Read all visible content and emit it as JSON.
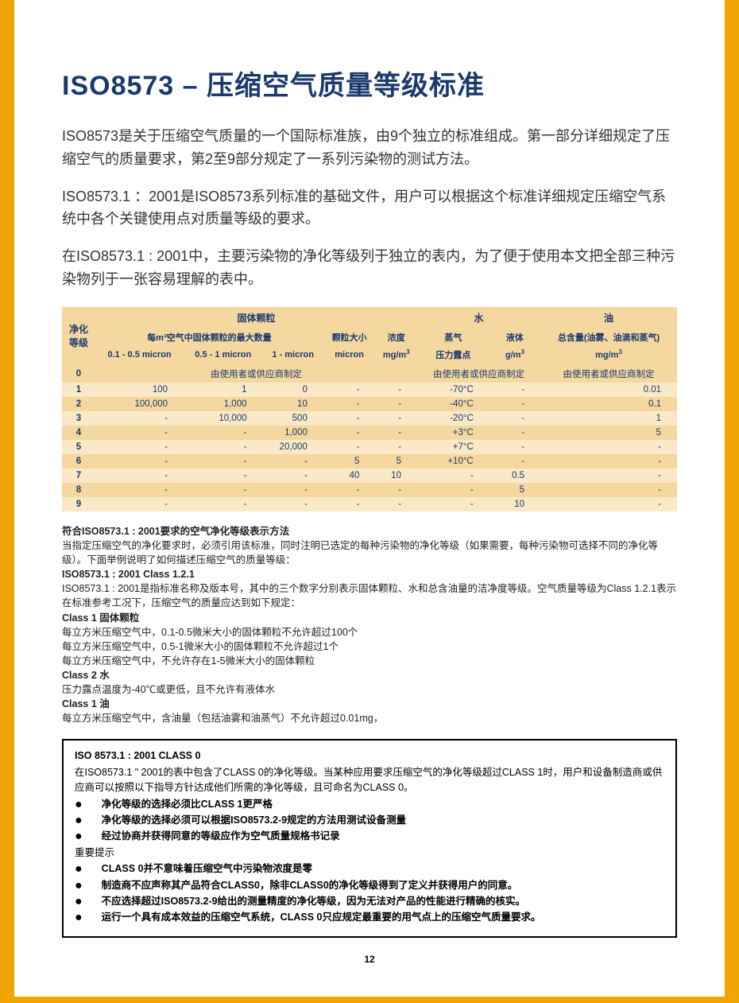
{
  "title": "ISO8573 – 压缩空气质量等级标准",
  "intro": {
    "p1": "ISO8573是关于压缩空气质量的一个国际标准族，由9个独立的标准组成。第一部分详细规定了压缩空气的质量要求，第2至9部分规定了一系列污染物的测试方法。",
    "p2": "ISO8573.1 ：2001是ISO8573系列标准的基础文件，用户可以根据这个标准详细规定压缩空气系统中各个关键使用点对质量等级的要求。",
    "p3": "在ISO8573.1 : 2001中，主要污染物的净化等级列于独立的表内，为了便于使用本文把全部三种污染物列于一张容易理解的表中。"
  },
  "table": {
    "groupHeaders": {
      "solid": "固体颗粒",
      "water": "水",
      "oil": "油"
    },
    "classLabel": "净化等级",
    "midHeaders": {
      "maxParticles": "每m³空气中固体颗粒的最大数量",
      "particleSize": "颗粒大小",
      "concentration": "浓度",
      "vapor": "蒸气",
      "liquid": "液体",
      "oilTotal": "总含量(油雾、油滴和蒸气)"
    },
    "subHeaders": {
      "c1": "0.1 - 0.5 micron",
      "c2": "0.5 - 1 micron",
      "c3": "1 - micron",
      "c4": "micron",
      "c5": "mg/m³",
      "c6": "压力露点",
      "c7": "g/m³",
      "c8": "mg/m³"
    },
    "specifiedText": "由使用者或供应商制定",
    "rows": [
      {
        "cls": "0",
        "c1": "",
        "c2": "由使用者或供应商制定",
        "c3": "",
        "c4": "",
        "c5": "",
        "c6": "由使用者或供应商制定",
        "c7": "",
        "c8": "由使用者或供应商制定",
        "span": true
      },
      {
        "cls": "1",
        "c1": "100",
        "c2": "1",
        "c3": "0",
        "c4": "-",
        "c5": "-",
        "c6": "-70°C",
        "c7": "-",
        "c8": "0.01"
      },
      {
        "cls": "2",
        "c1": "100,000",
        "c2": "1,000",
        "c3": "10",
        "c4": "-",
        "c5": "-",
        "c6": "-40°C",
        "c7": "-",
        "c8": "0.1"
      },
      {
        "cls": "3",
        "c1": "-",
        "c2": "10,000",
        "c3": "500",
        "c4": "-",
        "c5": "-",
        "c6": "-20°C",
        "c7": "-",
        "c8": "1"
      },
      {
        "cls": "4",
        "c1": "-",
        "c2": "-",
        "c3": "1,000",
        "c4": "-",
        "c5": "-",
        "c6": "+3°C",
        "c7": "-",
        "c8": "5"
      },
      {
        "cls": "5",
        "c1": "-",
        "c2": "-",
        "c3": "20,000",
        "c4": "-",
        "c5": "-",
        "c6": "+7°C",
        "c7": "-",
        "c8": "-"
      },
      {
        "cls": "6",
        "c1": "-",
        "c2": "-",
        "c3": "-",
        "c4": "5",
        "c5": "5",
        "c6": "+10°C",
        "c7": "-",
        "c8": "-"
      },
      {
        "cls": "7",
        "c1": "-",
        "c2": "-",
        "c3": "-",
        "c4": "40",
        "c5": "10",
        "c6": "-",
        "c7": "0.5",
        "c8": "-"
      },
      {
        "cls": "8",
        "c1": "-",
        "c2": "-",
        "c3": "-",
        "c4": "-",
        "c5": "-",
        "c6": "-",
        "c7": "5",
        "c8": "-"
      },
      {
        "cls": "9",
        "c1": "-",
        "c2": "-",
        "c3": "-",
        "c4": "-",
        "c5": "-",
        "c6": "-",
        "c7": "10",
        "c8": "-"
      }
    ]
  },
  "spec": {
    "h1": "符合ISO8573.1 : 2001要求的空气净化等级表示方法",
    "p1": "当指定压缩空气的净化要求时，必须引用该标准，同时注明已选定的每种污染物的净化等级（如果需要，每种污染物可选择不同的净化等级）。下面举例说明了如何描述压缩空气的质量等级：",
    "h2": "ISO8573.1 : 2001 Class 1.2.1",
    "p2": "ISO8573.1 : 2001是指标准名称及版本号，其中的三个数字分别表示固体颗粒、水和总含油量的洁净度等级。空气质量等级为Class 1.2.1表示在标准参考工况下，压缩空气的质量应达到如下规定：",
    "h3": "Class 1 固体颗粒",
    "p3a": "每立方米压缩空气中，0.1-0.5微米大小的固体颗粒不允许超过100个",
    "p3b": "每立方米压缩空气中，0.5-1微米大小的固体颗粒不允许超过1个",
    "p3c": "每立方米压缩空气中，不允许存在1-5微米大小的固体颗粒",
    "h4": "Class 2 水",
    "p4": "压力露点温度为-40℃或更低，且不允许有液体水",
    "h5": "Class 1 油",
    "p5": "每立方米压缩空气中，含油量（包括油雾和油蒸气）不允许超过0.01mg，"
  },
  "box": {
    "title": "ISO 8573.1 : 2001 CLASS 0",
    "intro": "在ISO8573.1 \" 2001的表中包含了CLASS 0的净化等级。当某种应用要求压缩空气的净化等级超过CLASS 1时，用户和设备制造商或供应商可以按照以下指导方针达成他们所需的净化等级，且可命名为CLASS 0。",
    "bullets1": [
      "净化等级的选择必须比CLASS 1更严格",
      "净化等级的选择必须可以根据ISO8573.2-9规定的方法用测试设备测量",
      "经过协商并获得同意的等级应作为空气质量规格书记录"
    ],
    "noteTitle": "重要提示",
    "bullets2": [
      "CLASS 0并不意味着压缩空气中污染物浓度是零",
      "制造商不应声称其产品符合CLASS0，除非CLASS0的净化等级得到了定义并获得用户的同意。",
      "不应选择超过ISO8573.2-9给出的测量精度的净化等级，因为无法对产品的性能进行精确的核实。",
      "运行一个具有成本效益的压缩空气系统，CLASS 0只应规定最重要的用气点上的压缩空气质量要求。"
    ]
  },
  "pageNumber": "12",
  "colors": {
    "pageBg": "#f0a500",
    "titleColor": "#1a3a6e",
    "tableHeaderBg": "#f5d7a0",
    "tableRowOdd": "#f9e9c7",
    "tableRowEven": "#f5d7a0"
  }
}
